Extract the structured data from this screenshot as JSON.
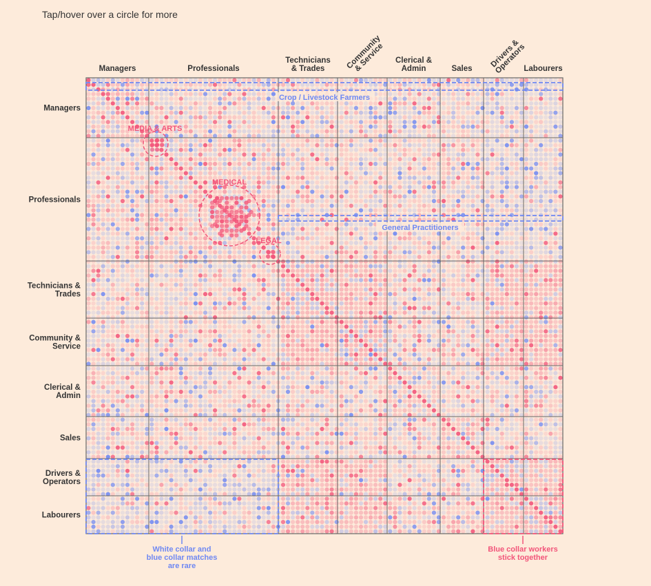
{
  "hint": "Tap/hover over a circle for more",
  "colors": {
    "background": "#fdebdb",
    "pink": "#f2557a",
    "blue": "#6f88f2",
    "grid": "#666666"
  },
  "chart_data": {
    "type": "heatmap",
    "title": "",
    "groups": [
      {
        "name": "Managers",
        "row_label": [
          "Managers"
        ],
        "col_label": [
          "Managers"
        ]
      },
      {
        "name": "Professionals",
        "row_label": [
          "Professionals"
        ],
        "col_label": [
          "Professionals"
        ]
      },
      {
        "name": "Technicians & Trades",
        "row_label": [
          "Technicians &",
          "Trades"
        ],
        "col_label": [
          "Technicians",
          "& Trades"
        ]
      },
      {
        "name": "Community & Service",
        "row_label": [
          "Community &",
          "Service"
        ],
        "col_label": [
          "Community",
          "& Service"
        ]
      },
      {
        "name": "Clerical & Admin",
        "row_label": [
          "Clerical &",
          "Admin"
        ],
        "col_label": [
          "Clerical &",
          "Admin"
        ]
      },
      {
        "name": "Sales",
        "row_label": [
          "Sales"
        ],
        "col_label": [
          "Sales"
        ]
      },
      {
        "name": "Drivers & Operators",
        "row_label": [
          "Drivers &",
          "Operators"
        ],
        "col_label": [
          "Drivers &",
          "Operators"
        ]
      },
      {
        "name": "Labourers",
        "row_label": [
          "Labourers"
        ],
        "col_label": [
          "Labourers"
        ]
      }
    ],
    "annotations": [
      {
        "id": "media-arts",
        "text": "MEDIA & ARTS",
        "color": "pink"
      },
      {
        "id": "medical",
        "text": "MEDICAL",
        "color": "pink"
      },
      {
        "id": "legal",
        "text": "LEGAL",
        "color": "pink"
      },
      {
        "id": "crop-farmers",
        "text": "Crop / Livestock Farmers",
        "color": "blue"
      },
      {
        "id": "general-practitioners",
        "text": "General Practitioners",
        "color": "blue"
      },
      {
        "id": "white-blue-rare",
        "lines": [
          "White collar and",
          "blue collar matches",
          "are rare"
        ],
        "color": "blue"
      },
      {
        "id": "blue-collar-together",
        "lines": [
          "Blue collar workers",
          "stick together"
        ],
        "color": "pink"
      }
    ]
  }
}
